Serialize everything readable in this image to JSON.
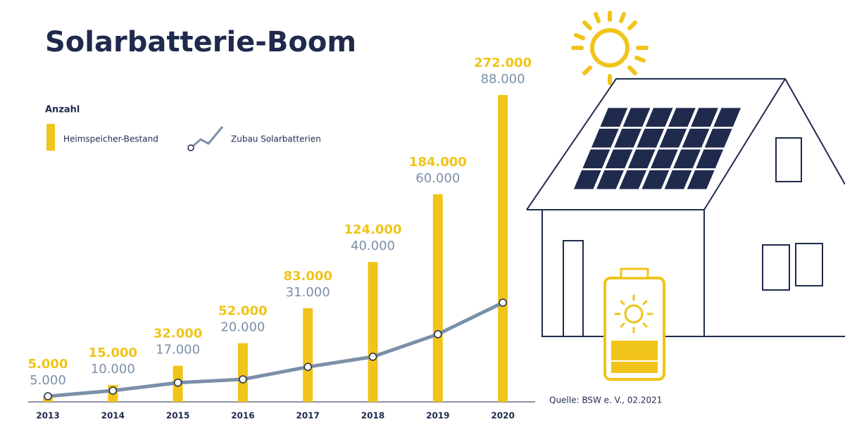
{
  "chart_data": {
    "type": "bar",
    "title": "Solarbatterie-Boom",
    "y_label": "Anzahl",
    "source": "Quelle: BSW e. V., 02.2021",
    "categories": [
      "2013",
      "2014",
      "2015",
      "2016",
      "2017",
      "2018",
      "2019",
      "2020"
    ],
    "series": [
      {
        "name": "Heimspeicher-Bestand",
        "type": "bar",
        "color": "#f0c419",
        "values": [
          5000,
          15000,
          32000,
          52000,
          83000,
          124000,
          184000,
          272000
        ],
        "value_labels": [
          "5.000",
          "15.000",
          "32.000",
          "52.000",
          "83.000",
          "124.000",
          "184.000",
          "272.000"
        ]
      },
      {
        "name": "Zubau Solarbatterien",
        "type": "line",
        "color": "#7b8fa8",
        "values": [
          5000,
          10000,
          17000,
          20000,
          31000,
          40000,
          60000,
          88000
        ],
        "value_labels": [
          "5.000",
          "10.000",
          "17.000",
          "20.000",
          "31.000",
          "40.000",
          "60.000",
          "88.000"
        ]
      }
    ]
  }
}
